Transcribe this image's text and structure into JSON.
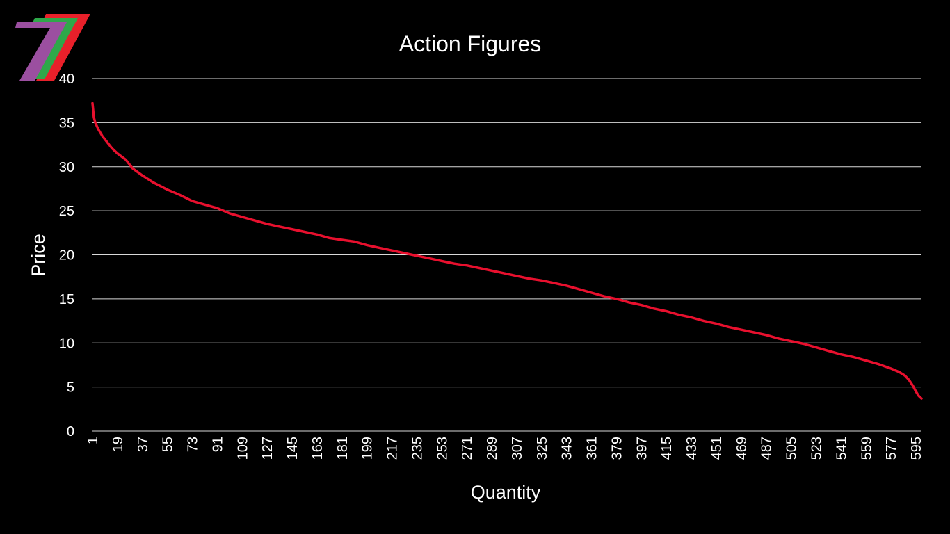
{
  "logo": {
    "icon": "seven-stripes-logo-icon",
    "colors": [
      "#e8202a",
      "#2ea84a",
      "#9b4fa0"
    ]
  },
  "chart_data": {
    "type": "line",
    "title": "Action Figures",
    "xlabel": "Quantity",
    "ylabel": "Price",
    "xlim": [
      1,
      599
    ],
    "ylim": [
      0,
      40
    ],
    "y_ticks": [
      0,
      5,
      10,
      15,
      20,
      25,
      30,
      35,
      40
    ],
    "x_tick_labels": [
      "1",
      "19",
      "37",
      "55",
      "73",
      "91",
      "109",
      "127",
      "145",
      "163",
      "181",
      "199",
      "217",
      "235",
      "253",
      "271",
      "289",
      "307",
      "325",
      "343",
      "361",
      "379",
      "397",
      "415",
      "433",
      "451",
      "469",
      "487",
      "505",
      "523",
      "541",
      "559",
      "577",
      "595"
    ],
    "grid": true,
    "legend": "none",
    "series_color": "#e8102e",
    "series": [
      {
        "x": [
          1,
          2,
          3,
          5,
          8,
          12,
          15,
          19,
          25,
          30,
          37,
          45,
          55,
          64,
          73,
          82,
          91,
          100,
          109,
          118,
          127,
          136,
          145,
          154,
          163,
          172,
          181,
          190,
          199,
          208,
          217,
          226,
          235,
          244,
          253,
          262,
          271,
          280,
          289,
          298,
          307,
          316,
          325,
          334,
          343,
          352,
          361,
          370,
          379,
          388,
          397,
          406,
          415,
          424,
          433,
          442,
          451,
          460,
          469,
          478,
          487,
          496,
          505,
          514,
          523,
          532,
          541,
          550,
          559,
          568,
          577,
          583,
          587,
          590,
          593,
          595,
          597,
          599
        ],
        "y": [
          37.2,
          35.6,
          35.0,
          34.3,
          33.5,
          32.7,
          32.1,
          31.5,
          30.8,
          29.8,
          29.0,
          28.2,
          27.4,
          26.8,
          26.1,
          25.7,
          25.3,
          24.7,
          24.3,
          23.9,
          23.5,
          23.2,
          22.9,
          22.6,
          22.3,
          21.9,
          21.7,
          21.5,
          21.1,
          20.8,
          20.5,
          20.2,
          19.9,
          19.6,
          19.3,
          19.0,
          18.8,
          18.5,
          18.2,
          17.9,
          17.6,
          17.3,
          17.1,
          16.8,
          16.5,
          16.1,
          15.7,
          15.3,
          15.0,
          14.6,
          14.3,
          13.9,
          13.6,
          13.2,
          12.9,
          12.5,
          12.2,
          11.8,
          11.5,
          11.2,
          10.9,
          10.5,
          10.2,
          9.9,
          9.5,
          9.1,
          8.7,
          8.4,
          8.0,
          7.6,
          7.1,
          6.7,
          6.3,
          5.8,
          5.1,
          4.5,
          4.0,
          3.7
        ]
      }
    ]
  }
}
